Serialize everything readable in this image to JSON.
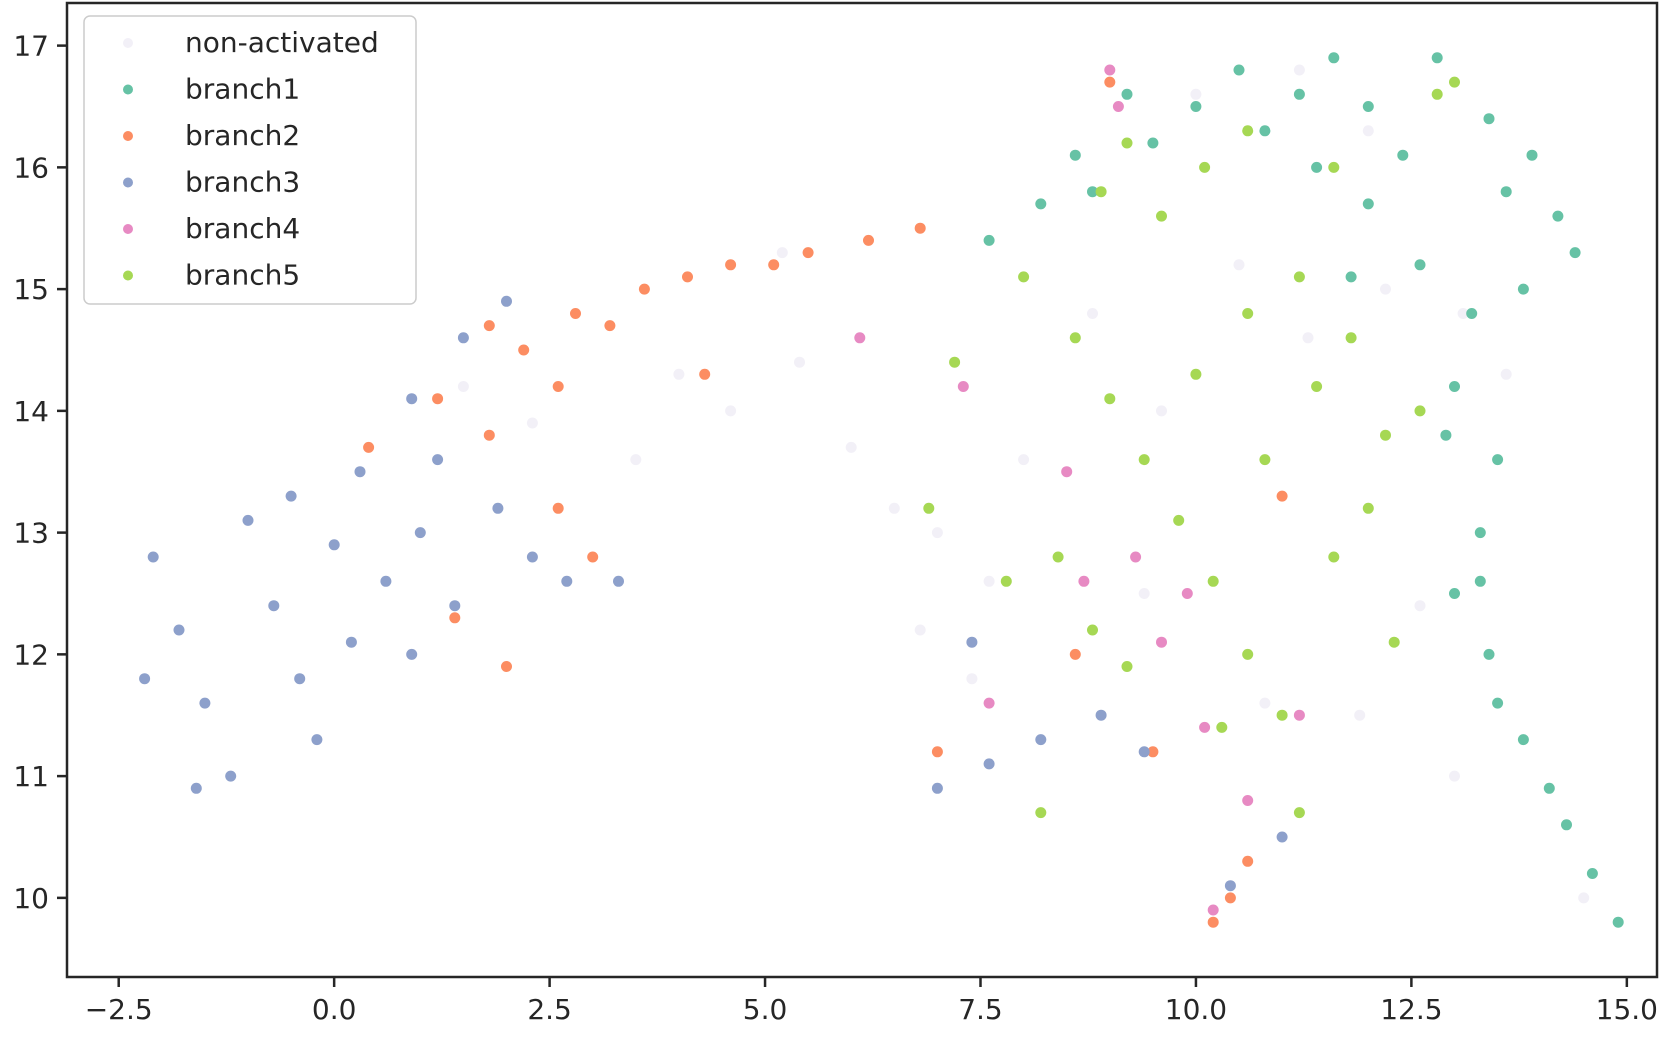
{
  "chart_data": {
    "type": "scatter",
    "title": "",
    "xlabel": "",
    "ylabel": "",
    "xlim": [
      -3.1,
      15.35
    ],
    "ylim": [
      9.35,
      17.35
    ],
    "x_ticks": [
      -2.5,
      0.0,
      2.5,
      5.0,
      7.5,
      10.0,
      12.5,
      15.0
    ],
    "x_tick_labels": [
      "−2.5",
      "0.0",
      "2.5",
      "5.0",
      "7.5",
      "10.0",
      "12.5",
      "15.0"
    ],
    "y_ticks": [
      10,
      11,
      12,
      13,
      14,
      15,
      16,
      17
    ],
    "y_tick_labels": [
      "10",
      "11",
      "12",
      "13",
      "14",
      "15",
      "16",
      "17"
    ],
    "grid": false,
    "legend_position": "top-left",
    "series": [
      {
        "name": "non-activated",
        "color": "#f2f0f7",
        "points": [
          [
            2.3,
            13.9
          ],
          [
            3.5,
            13.6
          ],
          [
            4.6,
            14.0
          ],
          [
            5.4,
            14.4
          ],
          [
            6.0,
            13.7
          ],
          [
            6.5,
            13.2
          ],
          [
            7.0,
            13.0
          ],
          [
            7.6,
            12.6
          ],
          [
            8.0,
            13.6
          ],
          [
            8.8,
            14.8
          ],
          [
            9.6,
            14.0
          ],
          [
            10.5,
            15.2
          ],
          [
            11.3,
            14.6
          ],
          [
            12.2,
            15.0
          ],
          [
            13.1,
            14.8
          ],
          [
            13.6,
            14.3
          ],
          [
            12.0,
            16.3
          ],
          [
            11.2,
            16.8
          ],
          [
            10.0,
            16.6
          ],
          [
            9.4,
            12.5
          ],
          [
            10.8,
            11.6
          ],
          [
            7.4,
            11.8
          ],
          [
            13.0,
            11.0
          ],
          [
            14.5,
            10.0
          ],
          [
            1.5,
            14.2
          ],
          [
            4.0,
            14.3
          ],
          [
            5.2,
            15.3
          ],
          [
            6.8,
            12.2
          ],
          [
            12.6,
            12.4
          ],
          [
            11.9,
            11.5
          ]
        ]
      },
      {
        "name": "branch1",
        "color": "#66c2a5",
        "points": [
          [
            10.5,
            16.8
          ],
          [
            11.2,
            16.6
          ],
          [
            12.0,
            16.5
          ],
          [
            12.8,
            16.9
          ],
          [
            13.4,
            16.4
          ],
          [
            13.9,
            16.1
          ],
          [
            14.2,
            15.6
          ],
          [
            14.4,
            15.3
          ],
          [
            13.8,
            15.0
          ],
          [
            13.2,
            14.8
          ],
          [
            12.6,
            15.2
          ],
          [
            12.0,
            15.7
          ],
          [
            11.4,
            16.0
          ],
          [
            10.8,
            16.3
          ],
          [
            10.0,
            16.5
          ],
          [
            9.5,
            16.2
          ],
          [
            8.8,
            15.8
          ],
          [
            8.2,
            15.7
          ],
          [
            7.6,
            15.4
          ],
          [
            13.0,
            14.2
          ],
          [
            13.5,
            13.6
          ],
          [
            13.3,
            13.0
          ],
          [
            13.0,
            12.5
          ],
          [
            13.4,
            12.0
          ],
          [
            13.5,
            11.6
          ],
          [
            13.8,
            11.3
          ],
          [
            14.1,
            10.9
          ],
          [
            14.3,
            10.6
          ],
          [
            14.6,
            10.2
          ],
          [
            14.9,
            9.8
          ],
          [
            12.4,
            16.1
          ],
          [
            13.6,
            15.8
          ],
          [
            11.8,
            15.1
          ],
          [
            12.9,
            13.8
          ],
          [
            13.3,
            12.6
          ],
          [
            9.2,
            16.6
          ],
          [
            11.6,
            16.9
          ],
          [
            8.6,
            16.1
          ]
        ]
      },
      {
        "name": "branch2",
        "color": "#fc8d62",
        "points": [
          [
            1.8,
            14.7
          ],
          [
            2.2,
            14.5
          ],
          [
            2.8,
            14.8
          ],
          [
            3.2,
            14.7
          ],
          [
            3.6,
            15.0
          ],
          [
            4.1,
            15.1
          ],
          [
            4.6,
            15.2
          ],
          [
            5.1,
            15.2
          ],
          [
            5.5,
            15.3
          ],
          [
            6.2,
            15.4
          ],
          [
            6.8,
            15.5
          ],
          [
            1.2,
            14.1
          ],
          [
            1.8,
            13.8
          ],
          [
            2.6,
            13.2
          ],
          [
            3.0,
            12.8
          ],
          [
            0.4,
            13.7
          ],
          [
            1.4,
            12.3
          ],
          [
            2.0,
            11.9
          ],
          [
            4.3,
            14.3
          ],
          [
            2.6,
            14.2
          ],
          [
            9.0,
            16.7
          ],
          [
            10.4,
            10.0
          ],
          [
            10.2,
            9.8
          ],
          [
            9.5,
            11.2
          ],
          [
            10.6,
            10.3
          ],
          [
            7.0,
            11.2
          ],
          [
            8.6,
            12.0
          ],
          [
            11.0,
            13.3
          ]
        ]
      },
      {
        "name": "branch3",
        "color": "#8da0cb",
        "points": [
          [
            -2.1,
            12.8
          ],
          [
            -1.8,
            12.2
          ],
          [
            -1.5,
            11.6
          ],
          [
            -1.2,
            11.0
          ],
          [
            -1.0,
            13.1
          ],
          [
            -0.7,
            12.4
          ],
          [
            -0.4,
            11.8
          ],
          [
            -0.2,
            11.3
          ],
          [
            0.0,
            12.9
          ],
          [
            0.3,
            13.5
          ],
          [
            0.6,
            12.6
          ],
          [
            0.9,
            12.0
          ],
          [
            -2.2,
            11.8
          ],
          [
            -1.6,
            10.9
          ],
          [
            -0.5,
            13.3
          ],
          [
            0.2,
            12.1
          ],
          [
            1.0,
            13.0
          ],
          [
            1.4,
            12.4
          ],
          [
            1.9,
            13.2
          ],
          [
            2.3,
            12.8
          ],
          [
            2.7,
            12.6
          ],
          [
            3.3,
            12.6
          ],
          [
            0.9,
            14.1
          ],
          [
            1.5,
            14.6
          ],
          [
            2.0,
            14.9
          ],
          [
            1.2,
            13.6
          ],
          [
            7.0,
            10.9
          ],
          [
            7.6,
            11.1
          ],
          [
            8.2,
            11.3
          ],
          [
            8.9,
            11.5
          ],
          [
            9.4,
            11.2
          ],
          [
            10.4,
            10.1
          ],
          [
            11.0,
            10.5
          ],
          [
            7.4,
            12.1
          ]
        ]
      },
      {
        "name": "branch4",
        "color": "#e78ac3",
        "points": [
          [
            9.1,
            16.5
          ],
          [
            9.0,
            16.8
          ],
          [
            7.3,
            14.2
          ],
          [
            8.5,
            13.5
          ],
          [
            9.3,
            12.8
          ],
          [
            9.6,
            12.1
          ],
          [
            10.1,
            11.4
          ],
          [
            10.6,
            10.8
          ],
          [
            11.2,
            11.5
          ],
          [
            8.7,
            12.6
          ],
          [
            7.6,
            11.6
          ],
          [
            6.1,
            14.6
          ],
          [
            10.2,
            9.9
          ],
          [
            9.9,
            12.5
          ]
        ]
      },
      {
        "name": "branch5",
        "color": "#a6d854",
        "points": [
          [
            8.0,
            15.1
          ],
          [
            8.6,
            14.6
          ],
          [
            9.0,
            14.1
          ],
          [
            9.4,
            13.6
          ],
          [
            9.8,
            13.1
          ],
          [
            10.2,
            12.6
          ],
          [
            10.6,
            12.0
          ],
          [
            11.0,
            11.5
          ],
          [
            11.2,
            10.7
          ],
          [
            8.4,
            12.8
          ],
          [
            8.8,
            12.2
          ],
          [
            9.2,
            11.9
          ],
          [
            10.0,
            14.3
          ],
          [
            10.6,
            14.8
          ],
          [
            11.2,
            15.1
          ],
          [
            11.8,
            14.6
          ],
          [
            12.2,
            13.8
          ],
          [
            12.0,
            13.2
          ],
          [
            11.6,
            12.8
          ],
          [
            12.3,
            12.1
          ],
          [
            10.1,
            16.0
          ],
          [
            10.6,
            16.3
          ],
          [
            9.6,
            15.6
          ],
          [
            9.2,
            16.2
          ],
          [
            11.4,
            14.2
          ],
          [
            10.8,
            13.6
          ],
          [
            7.2,
            14.4
          ],
          [
            6.9,
            13.2
          ],
          [
            7.8,
            12.6
          ],
          [
            8.2,
            10.7
          ],
          [
            12.8,
            16.6
          ],
          [
            13.0,
            16.7
          ],
          [
            11.6,
            16.0
          ],
          [
            10.3,
            11.4
          ],
          [
            8.9,
            15.8
          ],
          [
            12.6,
            14.0
          ]
        ]
      }
    ]
  }
}
